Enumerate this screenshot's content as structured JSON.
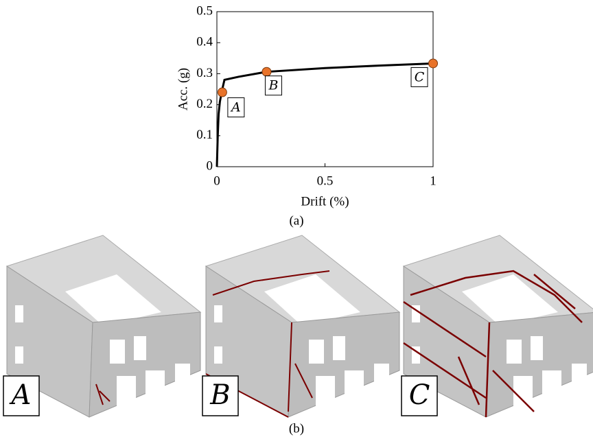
{
  "chart_data": {
    "type": "line",
    "x": [
      0,
      0.004,
      0.008,
      0.014,
      0.022,
      0.03,
      0.035,
      0.1,
      0.23,
      0.5,
      0.75,
      1
    ],
    "values": [
      0,
      0.1,
      0.17,
      0.21,
      0.24,
      0.265,
      0.28,
      0.29,
      0.306,
      0.318,
      0.326,
      0.333
    ],
    "color": "#000000",
    "points": {
      "x": [
        0.025,
        0.23,
        1
      ],
      "values": [
        0.24,
        0.306,
        0.333
      ],
      "labels": [
        "A",
        "B",
        "C"
      ],
      "color": "#e8732a"
    },
    "xlabel": "Drift (%)",
    "ylabel": "Acc. (g)",
    "xlim": [
      0,
      1
    ],
    "ylim": [
      0,
      0.5
    ],
    "xticks": [
      0,
      0.5,
      1
    ],
    "yticks": [
      0,
      0.1,
      0.2,
      0.3,
      0.4,
      0.5
    ],
    "caption": "(a)"
  },
  "panels": {
    "labels": [
      "A",
      "B",
      "C"
    ],
    "caption": "(b)"
  }
}
